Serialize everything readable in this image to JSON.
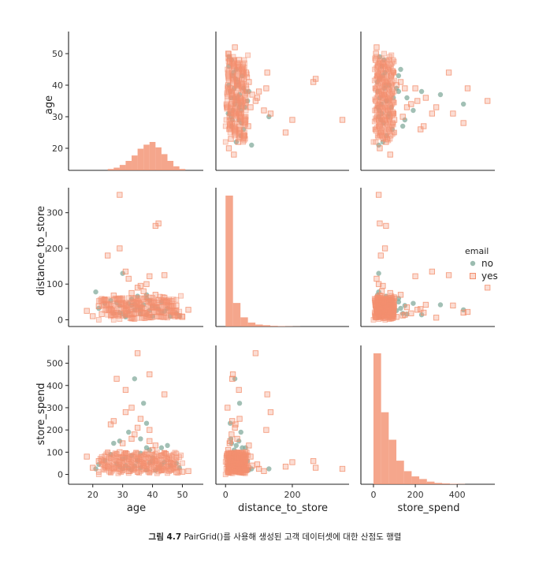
{
  "caption": {
    "figure_number": "그림 4.7",
    "text": "PairGrid()를 사용해 생성된 고객 데이터셋에 대한 산점도 행렬"
  },
  "colors": {
    "no": "#7aa595",
    "yes": "#f3906f"
  },
  "chart_data": {
    "type": "scatter",
    "variables": [
      "age",
      "distance_to_store",
      "store_spend"
    ],
    "axis_labels": {
      "age": "age",
      "distance_to_store": "distance_to_store",
      "store_spend": "store_spend"
    },
    "ranges": {
      "age": [
        14,
        57
      ],
      "distance_to_store": [
        -10,
        370
      ],
      "store_spend": [
        -30,
        580
      ]
    },
    "ticks": {
      "age": [
        20,
        30,
        40,
        50
      ],
      "distance_to_store": [
        0,
        100,
        200,
        300
      ],
      "distance_to_store_x": [
        0,
        200
      ],
      "store_spend": [
        0,
        100,
        200,
        300,
        400,
        500
      ],
      "store_spend_x": [
        0,
        200,
        400
      ]
    },
    "legend": {
      "title": "email",
      "entries": [
        "no",
        "yes"
      ],
      "placement": "right"
    },
    "series": [
      {
        "name": "no",
        "marker": "circle",
        "points": [
          [
            36,
            34,
            30
          ],
          [
            29,
            20,
            35
          ],
          [
            33,
            41,
            22
          ],
          [
            38,
            60,
            120
          ],
          [
            40,
            38,
            75
          ],
          [
            31,
            12,
            40
          ],
          [
            35,
            66,
            60
          ],
          [
            42,
            30,
            28
          ],
          [
            28,
            48,
            48
          ],
          [
            27,
            18,
            140
          ],
          [
            37,
            42,
            320
          ],
          [
            34,
            28,
            430
          ],
          [
            32,
            22,
            28
          ],
          [
            39,
            54,
            52
          ],
          [
            30,
            16,
            70
          ],
          [
            36,
            26,
            95
          ],
          [
            45,
            32,
            130
          ],
          [
            44,
            24,
            55
          ],
          [
            46,
            10,
            40
          ],
          [
            48,
            18,
            50
          ],
          [
            21,
            78,
            25
          ],
          [
            24,
            46,
            62
          ],
          [
            33,
            58,
            85
          ],
          [
            41,
            36,
            18
          ],
          [
            29,
            40,
            150
          ],
          [
            38,
            14,
            230
          ],
          [
            43,
            20,
            44
          ],
          [
            35,
            36,
            66
          ],
          [
            32,
            46,
            190
          ],
          [
            40,
            10,
            58
          ],
          [
            31,
            8,
            75
          ],
          [
            30,
            130,
            25
          ],
          [
            26,
            54,
            90
          ],
          [
            38,
            70,
            20
          ],
          [
            36,
            16,
            160
          ],
          [
            34,
            44,
            38
          ],
          [
            43,
            50,
            120
          ],
          [
            49,
            10,
            30
          ],
          [
            22,
            32,
            45
          ],
          [
            39,
            26,
            110
          ]
        ]
      },
      {
        "name": "yes",
        "marker": "square",
        "points": [
          [
            29,
            350,
            25
          ],
          [
            27,
            20,
            240
          ],
          [
            41,
            263,
            60
          ],
          [
            29,
            200,
            55
          ],
          [
            44,
            125,
            360
          ],
          [
            31,
            135,
            280
          ],
          [
            39,
            122,
            200
          ],
          [
            35,
            90,
            545
          ],
          [
            28,
            20,
            430
          ],
          [
            42,
            270,
            30
          ],
          [
            39,
            22,
            450
          ],
          [
            31,
            40,
            380
          ],
          [
            40,
            8,
            110
          ],
          [
            33,
            75,
            80
          ],
          [
            26,
            30,
            225
          ],
          [
            46,
            25,
            20
          ],
          [
            48,
            40,
            10
          ],
          [
            18,
            25,
            80
          ],
          [
            20,
            10,
            30
          ],
          [
            25,
            180,
            35
          ],
          [
            30,
            12,
            140
          ],
          [
            33,
            35,
            160
          ],
          [
            37,
            58,
            50
          ],
          [
            42,
            55,
            30
          ],
          [
            44,
            62,
            20
          ],
          [
            36,
            95,
            45
          ],
          [
            38,
            100,
            25
          ],
          [
            32,
            115,
            15
          ],
          [
            35,
            28,
            210
          ],
          [
            30,
            46,
            75
          ],
          [
            38,
            10,
            90
          ],
          [
            41,
            70,
            130
          ],
          [
            24,
            56,
            40
          ],
          [
            27,
            68,
            30
          ],
          [
            34,
            18,
            180
          ],
          [
            36,
            42,
            250
          ],
          [
            40,
            34,
            55
          ],
          [
            45,
            48,
            35
          ],
          [
            47,
            20,
            45
          ],
          [
            22,
            38,
            60
          ],
          [
            23,
            16,
            65
          ],
          [
            50,
            8,
            12
          ],
          [
            52,
            28,
            15
          ],
          [
            33,
            6,
            300
          ],
          [
            29,
            60,
            100
          ],
          [
            37,
            80,
            40
          ],
          [
            43,
            36,
            85
          ],
          [
            31,
            24,
            95
          ],
          [
            35,
            52,
            70
          ],
          [
            39,
            14,
            150
          ]
        ]
      }
    ]
  }
}
